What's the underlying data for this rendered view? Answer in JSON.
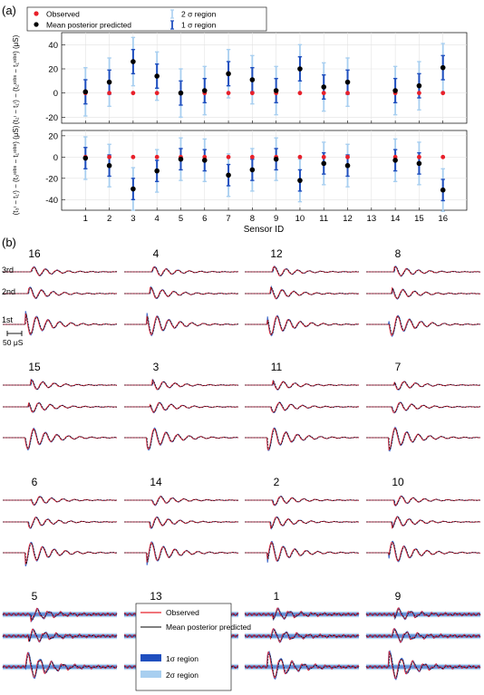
{
  "panel_a": {
    "label": "(a)",
    "legend": {
      "observed": "Observed",
      "predicted": "Mean posterior predicted",
      "two_sigma": "2 σ region",
      "one_sigma": "1 σ region"
    },
    "xlabel": "Sensor ID",
    "top_ylabel": "(t₂ᶦ − t₁ᶦ) − (t₂ᶦᵒᵇˢ − t₁ᶦᵒᵇˢ) (μS)",
    "bottom_ylabel": "(t₃ᶦ − t₁ᶦ) − (t₃ᶦᵒᵇˢ − t₁ᶦᵒᵇˢ) (μS)"
  },
  "panel_b": {
    "label": "(b)",
    "sensor_titles": [
      "16",
      "4",
      "12",
      "8",
      "15",
      "3",
      "11",
      "7",
      "6",
      "14",
      "2",
      "10",
      "5",
      "13",
      "1",
      "9"
    ],
    "arrival_labels": [
      "3rd",
      "2nd",
      "1st"
    ],
    "scale_label": "50 μS",
    "legend": {
      "observed": "Observed",
      "predicted": "Mean posterior predicted",
      "one_sigma": "1σ region",
      "two_sigma": "2σ region"
    }
  },
  "colors": {
    "observed": "#e8202a",
    "predicted": "#000000",
    "one_sigma": "#1f4fbf",
    "two_sigma": "#a8cff0"
  },
  "chart_data": [
    {
      "type": "scatter",
      "title": "",
      "xlabel": "Sensor ID",
      "ylabel": "(t₂ᶦ − t₁ᶦ) − (t₂ᶦᵒᵇˢ − t₁ᶦᵒᵇˢ) (μS)",
      "x": [
        1,
        2,
        3,
        4,
        5,
        6,
        7,
        8,
        9,
        10,
        11,
        12,
        14,
        15,
        16
      ],
      "xlim": [
        0,
        17
      ],
      "xticks": [
        1,
        2,
        3,
        4,
        5,
        6,
        7,
        8,
        9,
        10,
        11,
        12,
        13,
        14,
        15,
        16
      ],
      "ylim": [
        -25,
        50
      ],
      "yticks": [
        -20,
        0,
        20,
        40
      ],
      "grid": true,
      "series": [
        {
          "name": "Observed",
          "values": [
            0,
            0,
            0,
            0,
            0,
            0,
            0,
            0,
            0,
            0,
            0,
            0,
            0,
            0,
            0
          ]
        },
        {
          "name": "Mean posterior predicted",
          "values": [
            1,
            9,
            26,
            14,
            0,
            2,
            16,
            11,
            2,
            20,
            5,
            9,
            2,
            6,
            21
          ]
        },
        {
          "name": "1 σ region",
          "half_width": [
            10,
            10,
            10,
            10,
            10,
            10,
            10,
            10,
            10,
            10,
            10,
            10,
            10,
            10,
            10
          ]
        },
        {
          "name": "2 σ region",
          "half_width": [
            20,
            20,
            20,
            20,
            20,
            20,
            20,
            20,
            20,
            20,
            20,
            20,
            20,
            20,
            20
          ]
        }
      ]
    },
    {
      "type": "scatter",
      "title": "",
      "xlabel": "Sensor ID",
      "ylabel": "(t₃ᶦ − t₁ᶦ) − (t₃ᶦᵒᵇˢ − t₁ᶦᵒᵇˢ) (μS)",
      "x": [
        1,
        2,
        3,
        4,
        5,
        6,
        7,
        8,
        9,
        10,
        11,
        12,
        14,
        15,
        16
      ],
      "xlim": [
        0,
        17
      ],
      "xticks": [
        1,
        2,
        3,
        4,
        5,
        6,
        7,
        8,
        9,
        10,
        11,
        12,
        13,
        14,
        15,
        16
      ],
      "ylim": [
        -50,
        25
      ],
      "yticks": [
        -40,
        -20,
        0,
        20
      ],
      "grid": true,
      "series": [
        {
          "name": "Observed",
          "values": [
            0,
            0,
            0,
            0,
            0,
            0,
            0,
            0,
            0,
            0,
            0,
            0,
            0,
            0,
            0
          ]
        },
        {
          "name": "Mean posterior predicted",
          "values": [
            -1,
            -8,
            -30,
            -13,
            -2,
            -3,
            -17,
            -12,
            -2,
            -22,
            -6,
            -8,
            -3,
            -6,
            -31
          ]
        },
        {
          "name": "1 σ region",
          "half_width": [
            10,
            10,
            10,
            10,
            10,
            10,
            10,
            10,
            10,
            10,
            10,
            10,
            10,
            10,
            10
          ]
        },
        {
          "name": "2 σ region",
          "half_width": [
            20,
            20,
            20,
            20,
            20,
            20,
            20,
            20,
            20,
            20,
            20,
            20,
            20,
            20,
            20
          ]
        }
      ]
    }
  ]
}
